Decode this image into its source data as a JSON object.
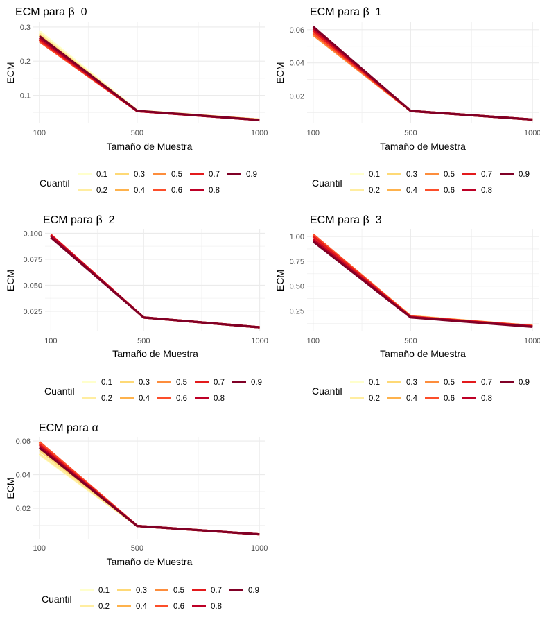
{
  "colors": {
    "0.1": "#FFFFCC",
    "0.2": "#FFEDA0",
    "0.3": "#FED976",
    "0.4": "#FEB24C",
    "0.5": "#FD8D3C",
    "0.6": "#FC4E2A",
    "0.7": "#E31A1C",
    "0.8": "#BD0026",
    "0.9": "#800026"
  },
  "legend": {
    "title": "Cuantil",
    "levels": [
      "0.1",
      "0.2",
      "0.3",
      "0.4",
      "0.5",
      "0.6",
      "0.7",
      "0.8",
      "0.9"
    ]
  },
  "chart_data": [
    {
      "type": "line",
      "title": "ECM para β_0",
      "xlabel": "Tamaño de Muestra",
      "ylabel": "ECM",
      "x": [
        100,
        500,
        1000
      ],
      "x_ticks": [
        "100",
        "500",
        "1000"
      ],
      "y_ticks": [
        "0.1",
        "0.2",
        "0.3"
      ],
      "xlim": [
        75,
        1025
      ],
      "ylim": [
        0.018,
        0.314
      ],
      "grid": true,
      "legend_position": "bottom",
      "series": [
        {
          "name": "0.1",
          "values": [
            0.288,
            0.056,
            0.029
          ]
        },
        {
          "name": "0.2",
          "values": [
            0.281,
            0.055,
            0.029
          ]
        },
        {
          "name": "0.3",
          "values": [
            0.276,
            0.055,
            0.029
          ]
        },
        {
          "name": "0.4",
          "values": [
            0.268,
            0.054,
            0.029
          ]
        },
        {
          "name": "0.5",
          "values": [
            0.262,
            0.054,
            0.028
          ]
        },
        {
          "name": "0.6",
          "values": [
            0.258,
            0.054,
            0.028
          ]
        },
        {
          "name": "0.7",
          "values": [
            0.263,
            0.054,
            0.028
          ]
        },
        {
          "name": "0.8",
          "values": [
            0.268,
            0.054,
            0.028
          ]
        },
        {
          "name": "0.9",
          "values": [
            0.273,
            0.055,
            0.028
          ]
        }
      ]
    },
    {
      "type": "line",
      "title": "ECM para β_1",
      "xlabel": "Tamaño de Muestra",
      "ylabel": "ECM",
      "x": [
        100,
        500,
        1000
      ],
      "x_ticks": [
        "100",
        "500",
        "1000"
      ],
      "y_ticks": [
        "0.02",
        "0.04",
        "0.06"
      ],
      "xlim": [
        75,
        1025
      ],
      "ylim": [
        0.0035,
        0.0645
      ],
      "grid": true,
      "legend_position": "bottom",
      "series": [
        {
          "name": "0.1",
          "values": [
            0.0605,
            0.011,
            0.0058
          ]
        },
        {
          "name": "0.2",
          "values": [
            0.0595,
            0.011,
            0.0058
          ]
        },
        {
          "name": "0.3",
          "values": [
            0.0585,
            0.011,
            0.0058
          ]
        },
        {
          "name": "0.4",
          "values": [
            0.0575,
            0.011,
            0.0058
          ]
        },
        {
          "name": "0.5",
          "values": [
            0.0568,
            0.011,
            0.0058
          ]
        },
        {
          "name": "0.6",
          "values": [
            0.058,
            0.011,
            0.0058
          ]
        },
        {
          "name": "0.7",
          "values": [
            0.0595,
            0.011,
            0.0058
          ]
        },
        {
          "name": "0.8",
          "values": [
            0.0608,
            0.011,
            0.0058
          ]
        },
        {
          "name": "0.9",
          "values": [
            0.0618,
            0.011,
            0.0058
          ]
        }
      ]
    },
    {
      "type": "line",
      "title": "ECM para β_2",
      "xlabel": "Tamaño de Muestra",
      "ylabel": "ECM",
      "x": [
        100,
        500,
        1000
      ],
      "x_ticks": [
        "100",
        "500",
        "1000"
      ],
      "y_ticks": [
        "0.025",
        "0.050",
        "0.075",
        "0.100"
      ],
      "xlim": [
        75,
        1025
      ],
      "ylim": [
        0.0056,
        0.1036
      ],
      "grid": true,
      "legend_position": "bottom",
      "series": [
        {
          "name": "0.1",
          "values": [
            0.097,
            0.019,
            0.0095
          ]
        },
        {
          "name": "0.2",
          "values": [
            0.0972,
            0.019,
            0.0095
          ]
        },
        {
          "name": "0.3",
          "values": [
            0.0975,
            0.019,
            0.0095
          ]
        },
        {
          "name": "0.4",
          "values": [
            0.0978,
            0.019,
            0.0095
          ]
        },
        {
          "name": "0.5",
          "values": [
            0.098,
            0.019,
            0.0095
          ]
        },
        {
          "name": "0.6",
          "values": [
            0.0985,
            0.019,
            0.0095
          ]
        },
        {
          "name": "0.7",
          "values": [
            0.0983,
            0.019,
            0.0095
          ]
        },
        {
          "name": "0.8",
          "values": [
            0.0975,
            0.019,
            0.0095
          ]
        },
        {
          "name": "0.9",
          "values": [
            0.096,
            0.019,
            0.0095
          ]
        }
      ]
    },
    {
      "type": "line",
      "title": "ECM para β_3",
      "xlabel": "Tamaño de Muestra",
      "ylabel": "ECM",
      "x": [
        100,
        500,
        1000
      ],
      "x_ticks": [
        "100",
        "500",
        "1000"
      ],
      "y_ticks": [
        "0.25",
        "0.50",
        "0.75",
        "1.00"
      ],
      "xlim": [
        75,
        1025
      ],
      "ylim": [
        0.044,
        1.07
      ],
      "grid": true,
      "legend_position": "bottom",
      "series": [
        {
          "name": "0.1",
          "values": [
            1.02,
            0.2,
            0.1
          ]
        },
        {
          "name": "0.2",
          "values": [
            1.01,
            0.2,
            0.1
          ]
        },
        {
          "name": "0.3",
          "values": [
            1.0,
            0.195,
            0.1
          ]
        },
        {
          "name": "0.4",
          "values": [
            1.005,
            0.195,
            0.1
          ]
        },
        {
          "name": "0.5",
          "values": [
            1.01,
            0.195,
            0.1
          ]
        },
        {
          "name": "0.6",
          "values": [
            1.02,
            0.195,
            0.1
          ]
        },
        {
          "name": "0.7",
          "values": [
            1.0,
            0.19,
            0.095
          ]
        },
        {
          "name": "0.8",
          "values": [
            0.97,
            0.19,
            0.095
          ]
        },
        {
          "name": "0.9",
          "values": [
            0.95,
            0.185,
            0.09
          ]
        }
      ]
    },
    {
      "type": "line",
      "title": "ECM para α",
      "xlabel": "Tamaño de Muestra",
      "ylabel": "ECM",
      "x": [
        100,
        500,
        1000
      ],
      "x_ticks": [
        "100",
        "500",
        "1000"
      ],
      "y_ticks": [
        "0.02",
        "0.04",
        "0.06"
      ],
      "xlim": [
        75,
        1025
      ],
      "ylim": [
        0.0019,
        0.0621
      ],
      "grid": true,
      "legend_position": "bottom",
      "series": [
        {
          "name": "0.1",
          "values": [
            0.052,
            0.0095,
            0.0045
          ]
        },
        {
          "name": "0.2",
          "values": [
            0.0525,
            0.0095,
            0.0045
          ]
        },
        {
          "name": "0.3",
          "values": [
            0.0545,
            0.0095,
            0.0045
          ]
        },
        {
          "name": "0.4",
          "values": [
            0.057,
            0.0095,
            0.0045
          ]
        },
        {
          "name": "0.5",
          "values": [
            0.059,
            0.0095,
            0.0045
          ]
        },
        {
          "name": "0.6",
          "values": [
            0.0595,
            0.0095,
            0.0045
          ]
        },
        {
          "name": "0.7",
          "values": [
            0.058,
            0.0095,
            0.0045
          ]
        },
        {
          "name": "0.8",
          "values": [
            0.057,
            0.0095,
            0.0045
          ]
        },
        {
          "name": "0.9",
          "values": [
            0.056,
            0.0095,
            0.0045
          ]
        }
      ]
    }
  ]
}
